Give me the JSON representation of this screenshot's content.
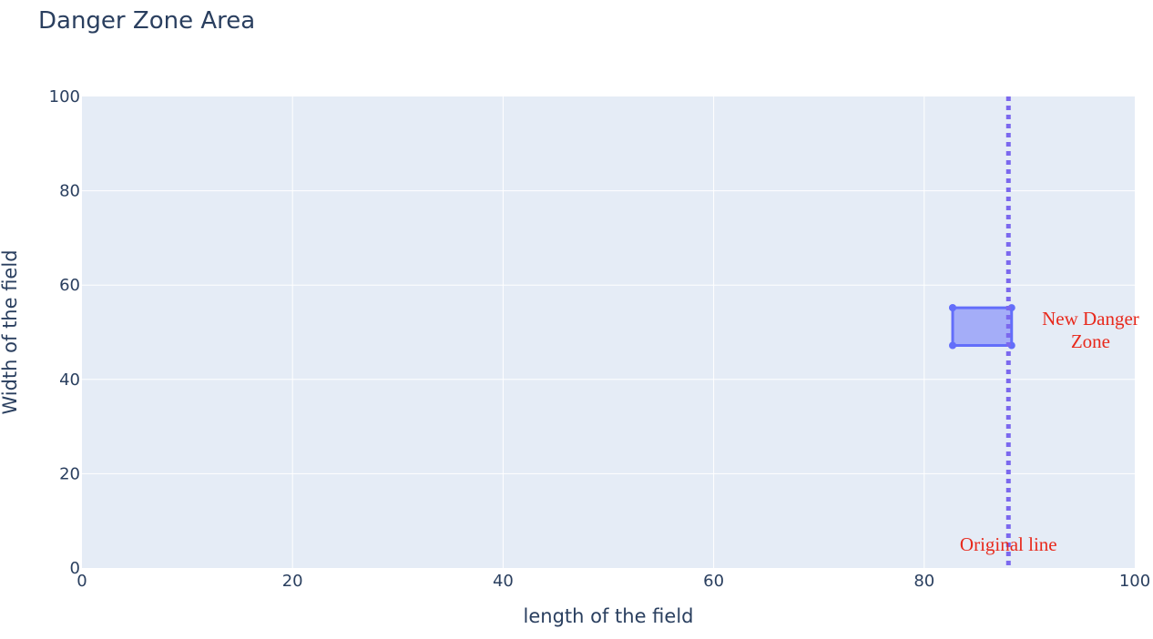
{
  "chart_data": {
    "type": "scatter",
    "title": "Danger Zone Area",
    "xlabel": "length of the field",
    "ylabel": "Width of the field",
    "xlim": [
      0,
      100
    ],
    "ylim": [
      0,
      100
    ],
    "xticks": [
      0,
      20,
      40,
      60,
      80,
      100
    ],
    "yticks": [
      0,
      20,
      40,
      60,
      80,
      100
    ],
    "grid": true,
    "legend": "none",
    "series": [
      {
        "x": [
          82.7,
          88.3,
          88.3,
          82.7,
          82.7
        ],
        "y": [
          55.2,
          55.2,
          47.2,
          47.2,
          55.2
        ],
        "fill": "toself",
        "mode": "lines+markers"
      }
    ],
    "vline": {
      "x": 88.0,
      "style": "dot"
    },
    "annotations": [
      {
        "text_lines": [
          "New Danger",
          "Zone"
        ],
        "x": 95.8,
        "y": 50.5
      },
      {
        "text_lines": [
          "Original line"
        ],
        "x": 88.0,
        "y": 5
      }
    ],
    "colors": {
      "plot_bg": "#e5ecf6",
      "grid": "#ffffff",
      "text": "#2a3f5f",
      "series_line": "#636efa",
      "series_fill": "rgba(99,110,250,0.5)",
      "vline": "#7b68ee",
      "annotation": "#e8291c"
    }
  }
}
